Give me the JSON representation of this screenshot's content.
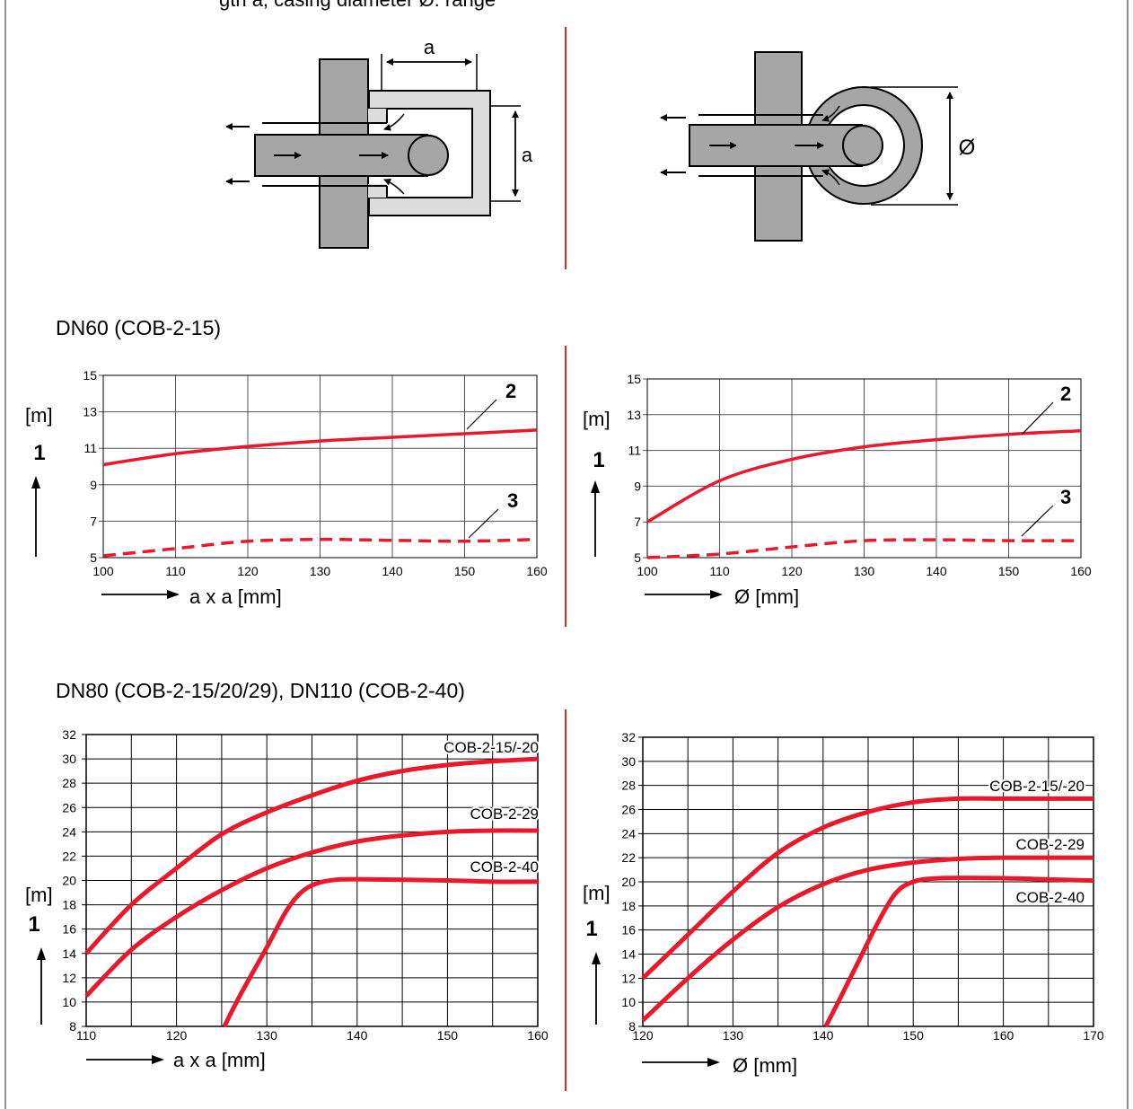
{
  "header_cut_text": "gth a, casing diameter Ø: range",
  "diagram_square": {
    "dim_top": "a",
    "dim_right": "a"
  },
  "diagram_round": {
    "dim_right": "Ø"
  },
  "sections": [
    {
      "title": "DN60 (COB-2-15)"
    },
    {
      "title": "DN80 (COB-2-15/20/29), DN110 (COB-2-40)"
    }
  ],
  "colors": {
    "curve": "#e8192c",
    "grid": "#333333",
    "divider": "#d52b2b",
    "shape_dark": "#a6a6a6",
    "shape_light": "#dcdcdc"
  },
  "chart_data": [
    {
      "type": "line",
      "xlim": [
        100,
        160
      ],
      "ylim": [
        5,
        15
      ],
      "xticks": [
        100,
        110,
        120,
        130,
        140,
        150,
        160
      ],
      "yticks": [
        5,
        7,
        9,
        11,
        13,
        15
      ],
      "ylabel": "[m]",
      "y_axis_ref": "1",
      "xlabel": "a x a [mm]",
      "grid": true,
      "series": [
        {
          "callout": "2",
          "style": "solid",
          "x": [
            100,
            110,
            120,
            130,
            140,
            150,
            160
          ],
          "y": [
            10.1,
            10.7,
            11.1,
            11.4,
            11.6,
            11.8,
            12.0
          ]
        },
        {
          "callout": "3",
          "style": "dashed",
          "x": [
            100,
            110,
            120,
            130,
            140,
            150,
            160
          ],
          "y": [
            5.1,
            5.5,
            5.9,
            6.0,
            5.95,
            5.9,
            6.0
          ]
        }
      ]
    },
    {
      "type": "line",
      "xlim": [
        100,
        160
      ],
      "ylim": [
        5,
        15
      ],
      "xticks": [
        100,
        110,
        120,
        130,
        140,
        150,
        160
      ],
      "yticks": [
        5,
        7,
        9,
        11,
        13,
        15
      ],
      "ylabel": "[m]",
      "y_axis_ref": "1",
      "xlabel": "Ø [mm]",
      "grid": true,
      "series": [
        {
          "callout": "2",
          "style": "solid",
          "x": [
            100,
            110,
            120,
            130,
            140,
            150,
            160
          ],
          "y": [
            7.0,
            9.3,
            10.5,
            11.2,
            11.6,
            11.9,
            12.1
          ]
        },
        {
          "callout": "3",
          "style": "dashed",
          "x": [
            100,
            110,
            120,
            130,
            140,
            150,
            160
          ],
          "y": [
            5.0,
            5.2,
            5.6,
            5.95,
            6.0,
            5.95,
            5.95
          ]
        }
      ]
    },
    {
      "type": "line",
      "xlim": [
        110,
        160
      ],
      "ylim": [
        8,
        32
      ],
      "xticks": [
        110,
        120,
        130,
        140,
        150,
        160
      ],
      "yticks": [
        8,
        10,
        12,
        14,
        16,
        18,
        20,
        22,
        24,
        26,
        28,
        30,
        32
      ],
      "ylabel": "[m]",
      "y_axis_ref": "1",
      "xlabel": "a x a [mm]",
      "grid": true,
      "series": [
        {
          "name": "COB-2-15/-20",
          "x": [
            110,
            115,
            120,
            125,
            130,
            135,
            140,
            145,
            150,
            155,
            160
          ],
          "y": [
            14.0,
            18.0,
            21.0,
            23.8,
            25.6,
            27.0,
            28.2,
            29.0,
            29.5,
            29.8,
            30.0
          ]
        },
        {
          "name": "COB-2-29",
          "x": [
            110,
            115,
            120,
            125,
            130,
            135,
            140,
            145,
            150,
            155,
            160
          ],
          "y": [
            10.5,
            14.3,
            17.0,
            19.2,
            21.0,
            22.3,
            23.2,
            23.7,
            24.0,
            24.1,
            24.1
          ]
        },
        {
          "name": "COB-2-40",
          "x": [
            125.3,
            127,
            130,
            132,
            133.5,
            135,
            137,
            140,
            150,
            155,
            160
          ],
          "y": [
            8.0,
            10.5,
            14.5,
            17.3,
            18.8,
            19.6,
            20.0,
            20.1,
            20.0,
            19.9,
            19.9
          ]
        }
      ]
    },
    {
      "type": "line",
      "xlim": [
        120,
        170
      ],
      "ylim": [
        8,
        32
      ],
      "xticks": [
        120,
        130,
        140,
        150,
        160,
        170
      ],
      "yticks": [
        8,
        10,
        12,
        14,
        16,
        18,
        20,
        22,
        24,
        26,
        28,
        30,
        32
      ],
      "ylabel": "[m]",
      "y_axis_ref": "1",
      "xlabel": "Ø [mm]",
      "grid": true,
      "series": [
        {
          "name": "COB-2-15/-20",
          "x": [
            120,
            125,
            130,
            135,
            140,
            145,
            150,
            155,
            160,
            165,
            170
          ],
          "y": [
            12.0,
            15.6,
            19.2,
            22.4,
            24.5,
            25.8,
            26.6,
            26.9,
            26.9,
            26.9,
            26.9
          ]
        },
        {
          "name": "COB-2-29",
          "x": [
            120,
            125,
            130,
            135,
            140,
            145,
            150,
            155,
            160,
            165,
            170
          ],
          "y": [
            8.5,
            12.0,
            15.2,
            17.9,
            19.8,
            21.0,
            21.6,
            21.9,
            22.0,
            22.0,
            22.0
          ]
        },
        {
          "name": "COB-2-40",
          "x": [
            140.3,
            142,
            144,
            146,
            148,
            150,
            153,
            160,
            165,
            170
          ],
          "y": [
            8.0,
            10.5,
            13.5,
            16.5,
            19.0,
            20.0,
            20.3,
            20.3,
            20.2,
            20.1
          ]
        }
      ]
    }
  ]
}
